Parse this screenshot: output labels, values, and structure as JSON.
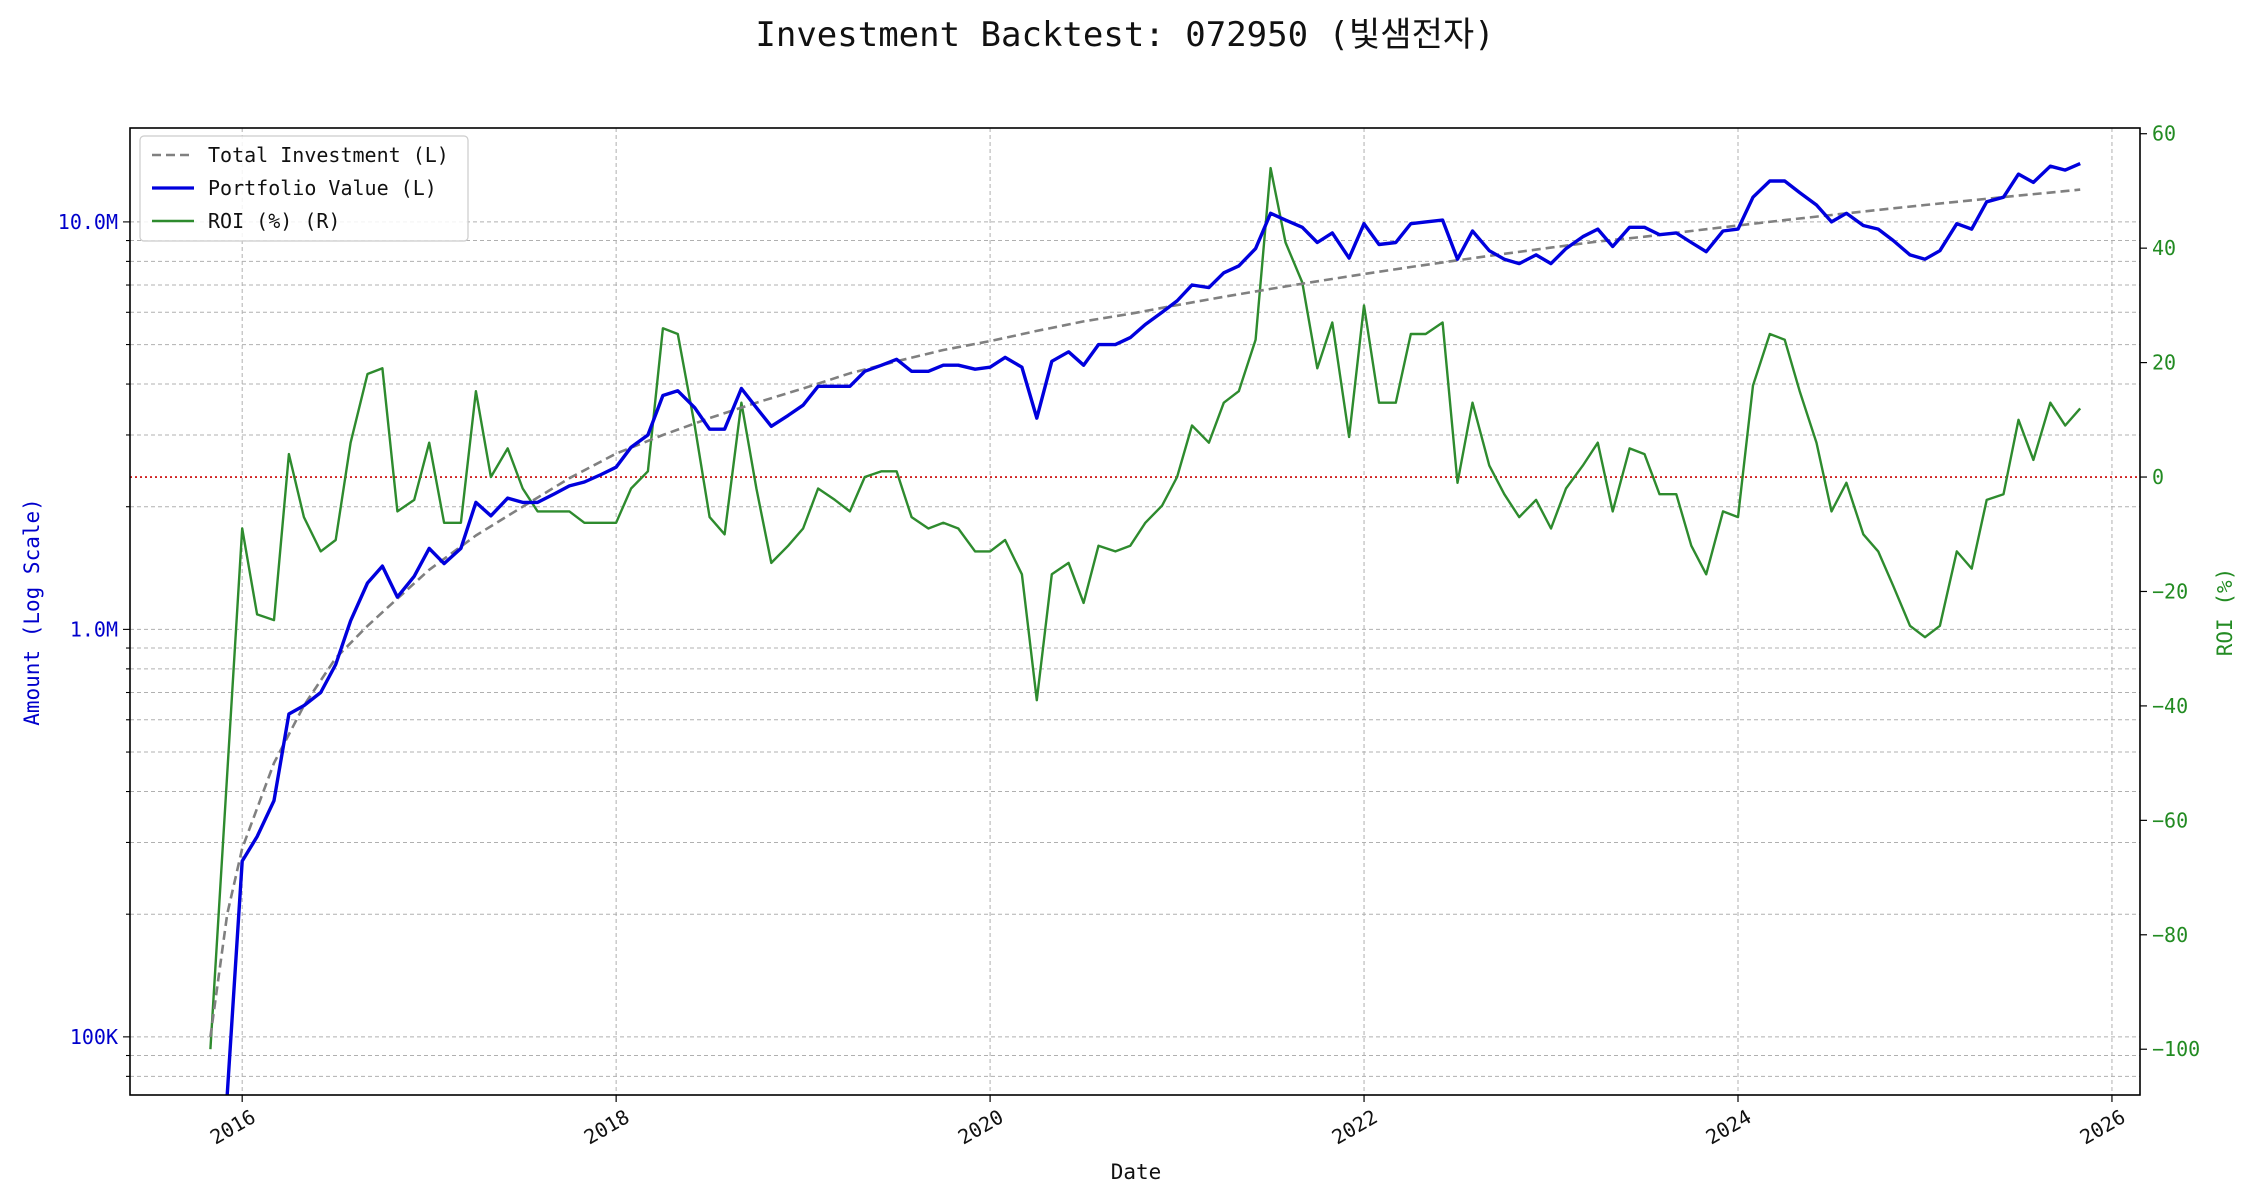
{
  "chart_data": {
    "type": "line",
    "title": "Investment Backtest: 072950 (빛샘전자)",
    "xlabel": "Date",
    "ylabel_left": "Amount (Log Scale)",
    "ylabel_right": "ROI (%)",
    "x_range": [
      2015.4,
      2026.15
    ],
    "x_ticks": [
      {
        "value": 2016,
        "label": "2016"
      },
      {
        "value": 2018,
        "label": "2018"
      },
      {
        "value": 2020,
        "label": "2020"
      },
      {
        "value": 2022,
        "label": "2022"
      },
      {
        "value": 2024,
        "label": "2024"
      },
      {
        "value": 2026,
        "label": "2026"
      }
    ],
    "y_left": {
      "scale": "log",
      "range": [
        72000,
        17000000
      ],
      "ticks": [
        {
          "value": 100000,
          "label": "100K"
        },
        {
          "value": 1000000,
          "label": "1.0M"
        },
        {
          "value": 10000000,
          "label": "10.0M"
        }
      ],
      "color": "#0000cc"
    },
    "y_right": {
      "scale": "linear",
      "range": [
        -108,
        61
      ],
      "ticks": [
        {
          "value": 60,
          "label": "60"
        },
        {
          "value": 40,
          "label": "40"
        },
        {
          "value": 20,
          "label": "20"
        },
        {
          "value": 0,
          "label": "0"
        },
        {
          "value": -20,
          "label": "−20"
        },
        {
          "value": -40,
          "label": "−40"
        },
        {
          "value": -60,
          "label": "−60"
        },
        {
          "value": -80,
          "label": "−80"
        },
        {
          "value": -100,
          "label": "−100"
        }
      ],
      "color": "#228b22"
    },
    "zero_line": {
      "value": 0,
      "axis": "right",
      "color": "#cc0000",
      "style": "dotted"
    },
    "grid": true,
    "legend": {
      "position": "top-left"
    },
    "series": [
      {
        "name": "Total Investment (L)",
        "axis": "left",
        "color": "#808080",
        "style": "dashed",
        "x": [
          2015.83,
          2015.92,
          2016.0,
          2016.17,
          2016.33,
          2016.5,
          2016.67,
          2016.83,
          2017.0,
          2017.25,
          2017.5,
          2017.75,
          2018.0,
          2018.25,
          2018.5,
          2018.75,
          2019.0,
          2019.25,
          2019.5,
          2019.75,
          2020.0,
          2020.25,
          2020.5,
          2020.75,
          2021.0,
          2021.25,
          2021.5,
          2021.75,
          2022.0,
          2022.25,
          2022.5,
          2022.75,
          2023.0,
          2023.25,
          2023.5,
          2023.75,
          2024.0,
          2024.25,
          2024.5,
          2024.75,
          2025.0,
          2025.25,
          2025.5,
          2025.75,
          2025.83
        ],
        "values": [
          100000,
          200000,
          290000,
          470000,
          650000,
          850000,
          1020000,
          1190000,
          1400000,
          1700000,
          2000000,
          2350000,
          2700000,
          3000000,
          3300000,
          3600000,
          3900000,
          4250000,
          4550000,
          4850000,
          5100000,
          5400000,
          5700000,
          5950000,
          6250000,
          6550000,
          6850000,
          7150000,
          7450000,
          7750000,
          8050000,
          8350000,
          8650000,
          8950000,
          9200000,
          9500000,
          9800000,
          10100000,
          10400000,
          10700000,
          11000000,
          11300000,
          11600000,
          11900000,
          12000000
        ]
      },
      {
        "name": "Portfolio Value (L)",
        "axis": "left",
        "color": "#0000dd",
        "style": "solid",
        "x": [
          2015.92,
          2016.0,
          2016.08,
          2016.17,
          2016.25,
          2016.33,
          2016.42,
          2016.5,
          2016.58,
          2016.67,
          2016.75,
          2016.83,
          2016.92,
          2017.0,
          2017.08,
          2017.17,
          2017.25,
          2017.33,
          2017.42,
          2017.5,
          2017.58,
          2017.67,
          2017.75,
          2017.83,
          2017.92,
          2018.0,
          2018.08,
          2018.17,
          2018.25,
          2018.33,
          2018.42,
          2018.5,
          2018.58,
          2018.67,
          2018.75,
          2018.83,
          2018.92,
          2019.0,
          2019.08,
          2019.17,
          2019.25,
          2019.33,
          2019.42,
          2019.5,
          2019.58,
          2019.67,
          2019.75,
          2019.83,
          2019.92,
          2020.0,
          2020.08,
          2020.17,
          2020.25,
          2020.33,
          2020.42,
          2020.5,
          2020.58,
          2020.67,
          2020.75,
          2020.83,
          2020.92,
          2021.0,
          2021.08,
          2021.17,
          2021.25,
          2021.33,
          2021.42,
          2021.5,
          2021.58,
          2021.67,
          2021.75,
          2021.83,
          2021.92,
          2022.0,
          2022.08,
          2022.17,
          2022.25,
          2022.33,
          2022.42,
          2022.5,
          2022.58,
          2022.67,
          2022.75,
          2022.83,
          2022.92,
          2023.0,
          2023.08,
          2023.17,
          2023.25,
          2023.33,
          2023.42,
          2023.5,
          2023.58,
          2023.67,
          2023.75,
          2023.83,
          2023.92,
          2024.0,
          2024.08,
          2024.17,
          2024.25,
          2024.33,
          2024.42,
          2024.5,
          2024.58,
          2024.67,
          2024.75,
          2024.83,
          2024.92,
          2025.0,
          2025.08,
          2025.17,
          2025.25,
          2025.33,
          2025.42,
          2025.5,
          2025.58,
          2025.67,
          2025.75,
          2025.83
        ],
        "values": [
          70000,
          270000,
          310000,
          380000,
          620000,
          650000,
          700000,
          820000,
          1050000,
          1300000,
          1430000,
          1200000,
          1350000,
          1580000,
          1450000,
          1580000,
          2050000,
          1900000,
          2100000,
          2050000,
          2050000,
          2150000,
          2250000,
          2300000,
          2400000,
          2500000,
          2800000,
          3000000,
          3750000,
          3850000,
          3500000,
          3100000,
          3100000,
          3900000,
          3500000,
          3150000,
          3350000,
          3550000,
          3950000,
          3950000,
          3950000,
          4300000,
          4450000,
          4600000,
          4300000,
          4300000,
          4450000,
          4450000,
          4350000,
          4400000,
          4650000,
          4400000,
          3300000,
          4550000,
          4800000,
          4450000,
          5000000,
          5000000,
          5200000,
          5600000,
          6000000,
          6400000,
          7000000,
          6900000,
          7500000,
          7800000,
          8600000,
          10500000,
          10100000,
          9700000,
          8900000,
          9400000,
          8150000,
          9900000,
          8800000,
          8900000,
          9900000,
          10000000,
          10100000,
          8100000,
          9500000,
          8500000,
          8100000,
          7900000,
          8300000,
          7900000,
          8600000,
          9200000,
          9600000,
          8700000,
          9700000,
          9700000,
          9300000,
          9400000,
          8900000,
          8450000,
          9500000,
          9600000,
          11500000,
          12600000,
          12600000,
          11800000,
          11000000,
          10000000,
          10500000,
          9800000,
          9600000,
          9000000,
          8300000,
          8100000,
          8500000,
          9900000,
          9600000,
          11200000,
          11500000,
          13100000,
          12500000,
          13700000,
          13400000,
          13900000
        ]
      },
      {
        "name": "ROI (%) (R)",
        "axis": "right",
        "color": "#2e8b2e",
        "style": "solid",
        "x": [
          2015.83,
          2016.0,
          2016.08,
          2016.17,
          2016.25,
          2016.33,
          2016.42,
          2016.5,
          2016.58,
          2016.67,
          2016.75,
          2016.83,
          2016.92,
          2017.0,
          2017.08,
          2017.17,
          2017.25,
          2017.33,
          2017.42,
          2017.5,
          2017.58,
          2017.67,
          2017.75,
          2017.83,
          2017.92,
          2018.0,
          2018.08,
          2018.17,
          2018.25,
          2018.33,
          2018.42,
          2018.5,
          2018.58,
          2018.67,
          2018.75,
          2018.83,
          2018.92,
          2019.0,
          2019.08,
          2019.17,
          2019.25,
          2019.33,
          2019.42,
          2019.5,
          2019.58,
          2019.67,
          2019.75,
          2019.83,
          2019.92,
          2020.0,
          2020.08,
          2020.17,
          2020.25,
          2020.33,
          2020.42,
          2020.5,
          2020.58,
          2020.67,
          2020.75,
          2020.83,
          2020.92,
          2021.0,
          2021.08,
          2021.17,
          2021.25,
          2021.33,
          2021.42,
          2021.5,
          2021.58,
          2021.67,
          2021.75,
          2021.83,
          2021.92,
          2022.0,
          2022.08,
          2022.17,
          2022.25,
          2022.33,
          2022.42,
          2022.5,
          2022.58,
          2022.67,
          2022.75,
          2022.83,
          2022.92,
          2023.0,
          2023.08,
          2023.17,
          2023.25,
          2023.33,
          2023.42,
          2023.5,
          2023.58,
          2023.67,
          2023.75,
          2023.83,
          2023.92,
          2024.0,
          2024.08,
          2024.17,
          2024.25,
          2024.33,
          2024.42,
          2024.5,
          2024.58,
          2024.67,
          2024.75,
          2024.83,
          2024.92,
          2025.0,
          2025.08,
          2025.17,
          2025.25,
          2025.33,
          2025.42,
          2025.5,
          2025.58,
          2025.67,
          2025.75,
          2025.83
        ],
        "values": [
          -100,
          -9,
          -24,
          -25,
          4,
          -7,
          -13,
          -11,
          6,
          18,
          19,
          -6,
          -4,
          6,
          -8,
          -8,
          15,
          0,
          5,
          -2,
          -6,
          -6,
          -6,
          -8,
          -8,
          -8,
          -2,
          1,
          26,
          25,
          9,
          -7,
          -10,
          13,
          -2,
          -15,
          -12,
          -9,
          -2,
          -4,
          -6,
          0,
          1,
          1,
          -7,
          -9,
          -8,
          -9,
          -13,
          -13,
          -11,
          -17,
          -39,
          -17,
          -15,
          -22,
          -12,
          -13,
          -12,
          -8,
          -5,
          0,
          9,
          6,
          13,
          15,
          24,
          54,
          41,
          34,
          19,
          27,
          7,
          30,
          13,
          13,
          25,
          25,
          27,
          -1,
          13,
          2,
          -3,
          -7,
          -4,
          -9,
          -2,
          2,
          6,
          -6,
          5,
          4,
          -3,
          -3,
          -12,
          -17,
          -6,
          -7,
          16,
          25,
          24,
          15,
          6,
          -6,
          -1,
          -10,
          -13,
          -19,
          -26,
          -28,
          -26,
          -13,
          -16,
          -4,
          -3,
          10,
          3,
          13,
          9,
          12
        ]
      }
    ]
  }
}
